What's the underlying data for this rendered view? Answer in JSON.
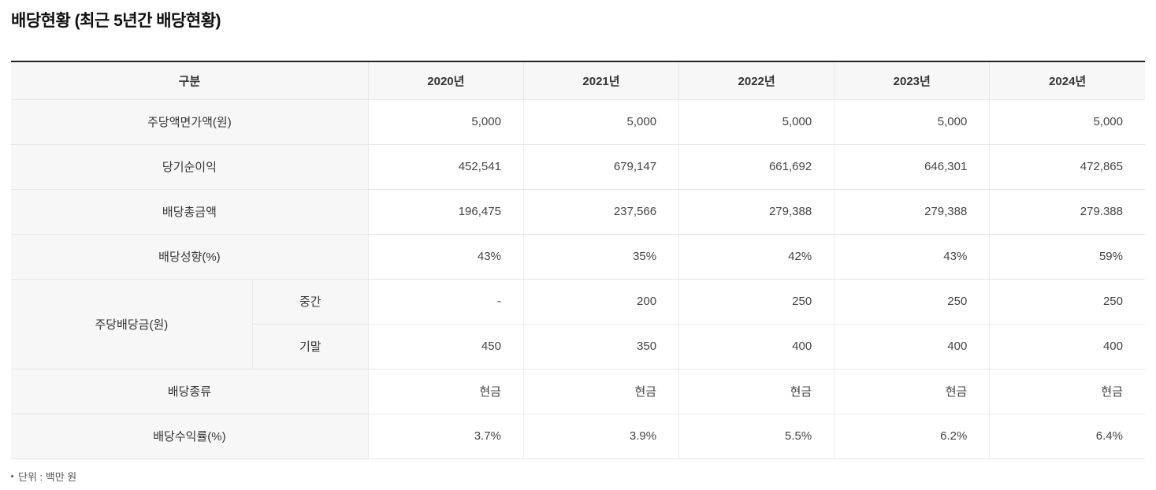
{
  "page": {
    "title": "배당현황 (최근 5년간 배당현황)",
    "footnote": "단위 : 백만 원"
  },
  "colors": {
    "table_top_border": "#222222",
    "header_bg": "#f7f7f7",
    "row_divider": "#e8e8e8",
    "text": "#444444"
  },
  "table": {
    "header": {
      "group_label": "구분",
      "years": [
        "2020년",
        "2021년",
        "2022년",
        "2023년",
        "2024년"
      ]
    },
    "rows": {
      "face_value": {
        "label": "주당액면가액(원)",
        "values": [
          "5,000",
          "5,000",
          "5,000",
          "5,000",
          "5,000"
        ]
      },
      "net_income": {
        "label": "당기순이익",
        "values": [
          "452,541",
          "679,147",
          "661,692",
          "646,301",
          "472,865"
        ]
      },
      "total_dividend": {
        "label": "배당총금액",
        "values": [
          "196,475",
          "237,566",
          "279,388",
          "279,388",
          "279.388"
        ]
      },
      "payout_ratio": {
        "label": "배당성향(%)",
        "values": [
          "43%",
          "35%",
          "42%",
          "43%",
          "59%"
        ]
      },
      "dps": {
        "label": "주당배당금(원)",
        "interim": {
          "label": "중간",
          "values": [
            "-",
            "200",
            "250",
            "250",
            "250"
          ]
        },
        "final": {
          "label": "기말",
          "values": [
            "450",
            "350",
            "400",
            "400",
            "400"
          ]
        }
      },
      "dividend_type": {
        "label": "배당종류",
        "values": [
          "현금",
          "현금",
          "현금",
          "현금",
          "현금"
        ]
      },
      "dividend_yield": {
        "label": "배당수익률(%)",
        "values": [
          "3.7%",
          "3.9%",
          "5.5%",
          "6.2%",
          "6.4%"
        ]
      }
    }
  }
}
